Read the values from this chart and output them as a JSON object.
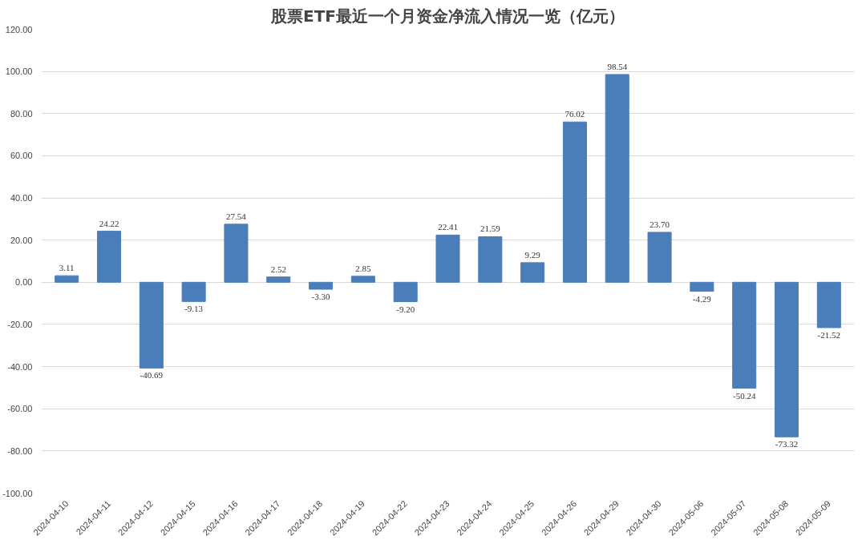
{
  "chart_data": {
    "type": "bar",
    "title": "股票ETF最近一个月资金净流入情况一览（亿元）",
    "categories": [
      "2024-04-10",
      "2024-04-11",
      "2024-04-12",
      "2024-04-15",
      "2024-04-16",
      "2024-04-17",
      "2024-04-18",
      "2024-04-19",
      "2024-04-22",
      "2024-04-23",
      "2024-04-24",
      "2024-04-25",
      "2024-04-26",
      "2024-04-29",
      "2024-04-30",
      "2024-05-06",
      "2024-05-07",
      "2024-05-08",
      "2024-05-09"
    ],
    "values": [
      3.11,
      24.22,
      -40.69,
      -9.13,
      27.54,
      2.52,
      -3.3,
      2.85,
      -9.2,
      22.41,
      21.59,
      9.29,
      76.02,
      98.54,
      23.7,
      -4.29,
      -50.24,
      -73.32,
      -21.52
    ],
    "value_labels": [
      "3.11",
      "24.22",
      "-40.69",
      "-9.13",
      "27.54",
      "2.52",
      "-3.30",
      "2.85",
      "-9.20",
      "22.41",
      "21.59",
      "9.29",
      "76.02",
      "98.54",
      "23.70",
      "-4.29",
      "-50.24",
      "-73.32",
      "-21.52"
    ],
    "color": "#4a7ebb",
    "ylim": [
      -100,
      120
    ],
    "yticks": [
      {
        "value": -100,
        "label": "-100.00"
      },
      {
        "value": -80,
        "label": "-80.00"
      },
      {
        "value": -60,
        "label": "-60.00"
      },
      {
        "value": -40,
        "label": "-40.00"
      },
      {
        "value": -20,
        "label": "-20.00"
      },
      {
        "value": 0,
        "label": "0.00"
      },
      {
        "value": 20,
        "label": "20.00"
      },
      {
        "value": 40,
        "label": "40.00"
      },
      {
        "value": 60,
        "label": "60.00"
      },
      {
        "value": 80,
        "label": "80.00"
      },
      {
        "value": 100,
        "label": "100.00"
      },
      {
        "value": 120,
        "label": "120.00"
      }
    ],
    "grid": "y"
  }
}
